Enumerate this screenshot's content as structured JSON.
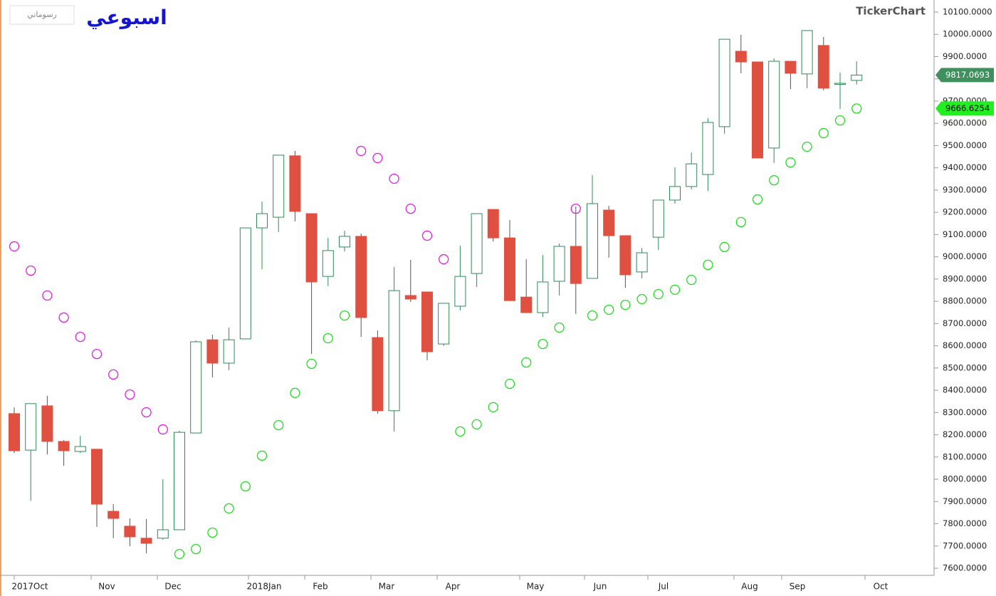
{
  "chart_data": {
    "type": "candlestick",
    "title": "اسبوعي",
    "watermark": "TickerChart",
    "button": "رسوماتي",
    "up_color": "#2e8b57",
    "down_color": "#e05040",
    "open": [
      8295,
      8131,
      8330,
      8170,
      8125,
      8135,
      7856,
      7789,
      7735,
      7735,
      7773,
      8208,
      8627,
      8522,
      8631,
      9130,
      9178,
      9454,
      9194,
      8912,
      9044,
      9092,
      8637,
      8308,
      8826,
      8842,
      8608,
      8778,
      8925,
      9213,
      9085,
      8819,
      8749,
      8890,
      9047,
      8903,
      9210,
      9095,
      8932,
      9088,
      9255,
      9316,
      9370,
      9585,
      9924,
      9876,
      9489,
      9879,
      9822,
      9950,
      9776,
      9793
    ],
    "high": [
      8323,
      8340,
      8375,
      8176,
      8195,
      8135,
      7888,
      7824,
      7821,
      8000,
      8218,
      8624,
      8650,
      8682,
      9130,
      9248,
      9457,
      9476,
      9194,
      9085,
      9117,
      9104,
      8669,
      8954,
      8986,
      8842,
      8791,
      9050,
      9194,
      9213,
      9165,
      8989,
      9008,
      9060,
      9226,
      9367,
      9229,
      9095,
      9040,
      9255,
      9402,
      9469,
      9623,
      9978,
      9998,
      9876,
      9892,
      9879,
      10017,
      9988,
      9828,
      9879
    ],
    "low": [
      8118,
      7903,
      8112,
      8061,
      8118,
      7786,
      7735,
      7699,
      7667,
      7728,
      7773,
      8208,
      8458,
      8490,
      8631,
      8944,
      9111,
      9159,
      8563,
      8868,
      9024,
      8640,
      8295,
      8215,
      8797,
      8535,
      8599,
      8759,
      8864,
      9069,
      8803,
      8749,
      8730,
      8826,
      8743,
      8903,
      8996,
      8861,
      8903,
      9031,
      9239,
      9303,
      9296,
      9553,
      9825,
      9444,
      9422,
      9754,
      9758,
      9748,
      9665,
      9774
    ],
    "close": [
      8128,
      8340,
      8170,
      8128,
      8147,
      7888,
      7824,
      7741,
      7712,
      7773,
      8211,
      8618,
      8522,
      8627,
      9130,
      9194,
      9457,
      9204,
      8887,
      9028,
      9092,
      8727,
      8308,
      8848,
      8810,
      8573,
      8791,
      8912,
      9194,
      9085,
      8803,
      8749,
      8887,
      9047,
      8880,
      9239,
      9095,
      8919,
      9018,
      9255,
      9316,
      9418,
      9604,
      9978,
      9876,
      9444,
      9879,
      9825,
      10017,
      9758,
      9780,
      9817.0693
    ],
    "sar": {
      "values": [
        9047,
        8938,
        8826,
        8727,
        8640,
        8563,
        8471,
        8381,
        8301,
        8224,
        7664,
        7686,
        7760,
        7869,
        7968,
        8106,
        8243,
        8388,
        8519,
        8634,
        8736,
        9476,
        9444,
        9351,
        9216,
        9095,
        8989,
        8215,
        8247,
        8324,
        8429,
        8525,
        8608,
        8682,
        9216,
        8736,
        8762,
        8784,
        8810,
        8832,
        8852,
        8896,
        8964,
        9044,
        9156,
        9258,
        9344,
        9424,
        9495,
        9556,
        9613,
        9666.6254
      ],
      "colors": [
        "#e020e0",
        "#e020e0",
        "#e020e0",
        "#e020e0",
        "#e020e0",
        "#e020e0",
        "#e020e0",
        "#e020e0",
        "#e020e0",
        "#e020e0",
        "#22dd22",
        "#22dd22",
        "#22dd22",
        "#22dd22",
        "#22dd22",
        "#22dd22",
        "#22dd22",
        "#22dd22",
        "#22dd22",
        "#22dd22",
        "#22dd22",
        "#e020e0",
        "#e020e0",
        "#e020e0",
        "#e020e0",
        "#e020e0",
        "#e020e0",
        "#22dd22",
        "#22dd22",
        "#22dd22",
        "#22dd22",
        "#22dd22",
        "#22dd22",
        "#22dd22",
        "#e020e0",
        "#22dd22",
        "#22dd22",
        "#22dd22",
        "#22dd22",
        "#22dd22",
        "#22dd22",
        "#22dd22",
        "#22dd22",
        "#22dd22",
        "#22dd22",
        "#22dd22",
        "#22dd22",
        "#22dd22",
        "#22dd22",
        "#22dd22",
        "#22dd22",
        "#22dd22"
      ]
    },
    "xtick_labels": [
      "2017Oct",
      "Nov",
      "Dec",
      "2018Jan",
      "Feb",
      "Mar",
      "Apr",
      "May",
      "Jun",
      "Jul",
      "Aug",
      "Sep",
      "Oct"
    ],
    "ylim": [
      7600,
      10100
    ],
    "yticks": [
      {
        "value": 7600,
        "label": "7600.0000"
      },
      {
        "value": 7700,
        "label": "7700.0000"
      },
      {
        "value": 7800,
        "label": "7800.0000"
      },
      {
        "value": 7900,
        "label": "7900.0000"
      },
      {
        "value": 8000,
        "label": "8000.0000"
      },
      {
        "value": 8100,
        "label": "8100.0000"
      },
      {
        "value": 8200,
        "label": "8200.0000"
      },
      {
        "value": 8300,
        "label": "8300.0000"
      },
      {
        "value": 8400,
        "label": "8400.0000"
      },
      {
        "value": 8500,
        "label": "8500.0000"
      },
      {
        "value": 8600,
        "label": "8600.0000"
      },
      {
        "value": 8700,
        "label": "8700.0000"
      },
      {
        "value": 8800,
        "label": "8800.0000"
      },
      {
        "value": 8900,
        "label": "8900.0000"
      },
      {
        "value": 9000,
        "label": "9000.0000"
      },
      {
        "value": 9100,
        "label": "9100.0000"
      },
      {
        "value": 9200,
        "label": "9200.0000"
      },
      {
        "value": 9300,
        "label": "9300.0000"
      },
      {
        "value": 9400,
        "label": "9400.0000"
      },
      {
        "value": 9500,
        "label": "9500.0000"
      },
      {
        "value": 9600,
        "label": "9600.0000"
      },
      {
        "value": 9700,
        "label": "9700.0000"
      },
      {
        "value": 9800,
        "label": "9800.0000"
      },
      {
        "value": 9900,
        "label": "9900.0000"
      },
      {
        "value": 10000,
        "label": "10000.0000"
      },
      {
        "value": 10100,
        "label": "10100.0000"
      }
    ]
  }
}
